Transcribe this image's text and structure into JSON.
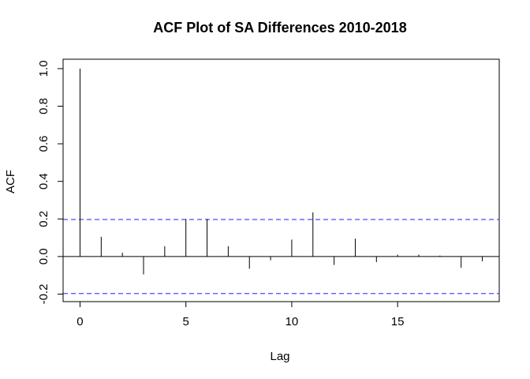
{
  "chart_data": {
    "type": "bar",
    "title": "ACF Plot of SA Differences 2010-2018",
    "xlabel": "Lag",
    "ylabel": "ACF",
    "xlim": [
      -0.8,
      19.8
    ],
    "ylim": [
      -0.24,
      1.05
    ],
    "x_ticks": [
      "0",
      "5",
      "10",
      "15"
    ],
    "y_ticks": [
      "-0.2",
      "0.0",
      "0.2",
      "0.4",
      "0.6",
      "0.8",
      "1.0"
    ],
    "lags": [
      0,
      1,
      2,
      3,
      4,
      5,
      6,
      7,
      8,
      9,
      10,
      11,
      12,
      13,
      14,
      15,
      16,
      17,
      18,
      19
    ],
    "values": [
      1.0,
      0.105,
      0.02,
      -0.095,
      0.055,
      0.2,
      0.2,
      0.055,
      -0.065,
      -0.02,
      0.09,
      0.235,
      -0.045,
      0.095,
      -0.03,
      0.01,
      0.01,
      0.005,
      -0.06,
      -0.025
    ],
    "confidence_bound": 0.197,
    "grid": false,
    "colors": {
      "bars": "#000000",
      "confidence": "#4b4bff",
      "frame": "#000000"
    }
  }
}
